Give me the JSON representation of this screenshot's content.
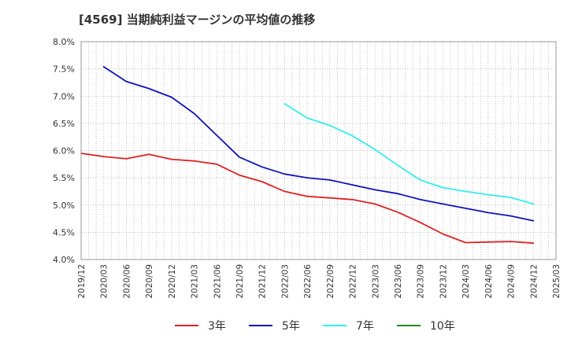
{
  "title": "[4569]  当期純利益マージンの平均値の推移",
  "chart_data": {
    "type": "line",
    "title": "[4569]  当期純利益マージンの平均値の推移",
    "xlabel": "",
    "ylabel": "",
    "ylim": [
      4.0,
      8.0
    ],
    "yticks": [
      "8.0%",
      "7.5%",
      "7.0%",
      "6.5%",
      "6.0%",
      "5.5%",
      "5.0%",
      "4.5%",
      "4.0%"
    ],
    "x_ticks": [
      "2019/12",
      "2020/03",
      "2020/06",
      "2020/09",
      "2020/12",
      "2021/03",
      "2021/06",
      "2021/09",
      "2021/12",
      "2022/03",
      "2022/06",
      "2022/09",
      "2022/12",
      "2023/03",
      "2023/06",
      "2023/09",
      "2023/12",
      "2024/03",
      "2024/06",
      "2024/09",
      "2024/12",
      "2025/03"
    ],
    "grid": true,
    "legend_position": "bottom",
    "series": [
      {
        "name": "3年",
        "color": "#dd2222",
        "x": [
          "2019/12",
          "2020/03",
          "2020/06",
          "2020/09",
          "2020/12",
          "2021/03",
          "2021/06",
          "2021/09",
          "2021/12",
          "2022/03",
          "2022/06",
          "2022/09",
          "2022/12",
          "2023/03",
          "2023/06",
          "2023/09",
          "2023/12",
          "2024/03",
          "2024/06",
          "2024/09",
          "2024/12"
        ],
        "values": [
          5.95,
          5.89,
          5.85,
          5.93,
          5.84,
          5.81,
          5.75,
          5.55,
          5.43,
          5.25,
          5.16,
          5.13,
          5.1,
          5.02,
          4.87,
          4.68,
          4.47,
          4.31,
          4.32,
          4.33,
          4.3
        ]
      },
      {
        "name": "5年",
        "color": "#1111bb",
        "x": [
          "2020/03",
          "2020/06",
          "2020/09",
          "2020/12",
          "2021/03",
          "2021/06",
          "2021/09",
          "2021/12",
          "2022/03",
          "2022/06",
          "2022/09",
          "2022/12",
          "2023/03",
          "2023/06",
          "2023/09",
          "2023/12",
          "2024/03",
          "2024/06",
          "2024/09",
          "2024/12"
        ],
        "values": [
          7.54,
          7.27,
          7.14,
          6.98,
          6.68,
          6.28,
          5.88,
          5.7,
          5.57,
          5.5,
          5.46,
          5.37,
          5.28,
          5.21,
          5.1,
          5.02,
          4.94,
          4.86,
          4.8,
          4.71
        ]
      },
      {
        "name": "7年",
        "color": "#33eeee",
        "x": [
          "2022/03",
          "2022/06",
          "2022/09",
          "2022/12",
          "2023/03",
          "2023/06",
          "2023/09",
          "2023/12",
          "2024/03",
          "2024/06",
          "2024/09",
          "2024/12"
        ],
        "values": [
          6.86,
          6.6,
          6.46,
          6.27,
          6.02,
          5.73,
          5.46,
          5.32,
          5.25,
          5.19,
          5.14,
          5.02
        ]
      },
      {
        "name": "10年",
        "color": "#228822",
        "x": [],
        "values": []
      }
    ]
  }
}
